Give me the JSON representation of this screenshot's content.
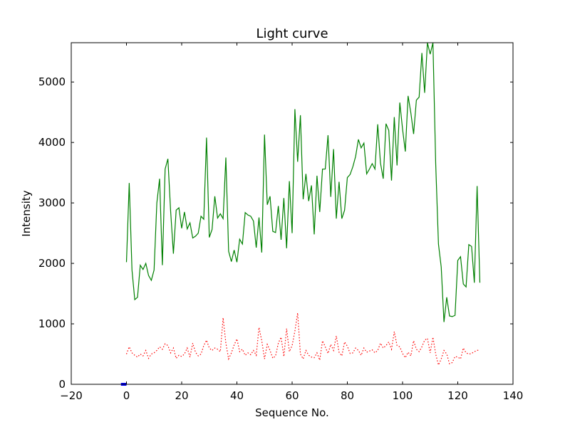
{
  "chart_data": {
    "type": "line",
    "title": "Light curve",
    "xlabel": "Sequence No.",
    "ylabel": "Intensity",
    "xlim": [
      -20,
      140
    ],
    "ylim": [
      0,
      5650
    ],
    "xticks": [
      -20,
      0,
      20,
      40,
      60,
      80,
      100,
      120,
      140
    ],
    "yticks": [
      0,
      1000,
      2000,
      3000,
      4000,
      5000
    ],
    "grid": false,
    "legend": "none",
    "series": [
      {
        "color": "#008000",
        "style": "solid",
        "x": [
          0,
          1,
          2,
          3,
          4,
          5,
          6,
          7,
          8,
          9,
          10,
          11,
          12,
          13,
          14,
          15,
          16,
          17,
          18,
          19,
          20,
          21,
          22,
          23,
          24,
          25,
          26,
          27,
          28,
          29,
          30,
          31,
          32,
          33,
          34,
          35,
          36,
          37,
          38,
          39,
          40,
          41,
          42,
          43,
          44,
          45,
          46,
          47,
          48,
          49,
          50,
          51,
          52,
          53,
          54,
          55,
          56,
          57,
          58,
          59,
          60,
          61,
          62,
          63,
          64,
          65,
          66,
          67,
          68,
          69,
          70,
          71,
          72,
          73,
          74,
          75,
          76,
          77,
          78,
          79,
          80,
          81,
          82,
          83,
          84,
          85,
          86,
          87,
          88,
          89,
          90,
          91,
          92,
          93,
          94,
          95,
          96,
          97,
          98,
          99,
          100,
          101,
          102,
          103,
          104,
          105,
          106,
          107,
          108,
          109,
          110,
          111,
          112,
          113,
          114,
          115,
          116,
          117,
          118,
          119,
          120,
          121,
          122,
          123,
          124,
          125,
          126,
          127,
          128
        ],
        "y": [
          2020,
          3330,
          1890,
          1400,
          1440,
          1970,
          1900,
          2000,
          1800,
          1720,
          1890,
          3000,
          3400,
          1970,
          3560,
          3730,
          2860,
          2160,
          2880,
          2920,
          2580,
          2850,
          2570,
          2670,
          2420,
          2450,
          2500,
          2780,
          2730,
          4080,
          2430,
          2560,
          3110,
          2750,
          2820,
          2740,
          3750,
          2200,
          2030,
          2220,
          2020,
          2400,
          2320,
          2840,
          2800,
          2780,
          2700,
          2260,
          2760,
          2180,
          4130,
          2970,
          3110,
          2530,
          2510,
          2950,
          2390,
          3080,
          2250,
          3360,
          2500,
          4550,
          3680,
          4450,
          3060,
          3480,
          3030,
          3290,
          2480,
          3450,
          2850,
          3560,
          3560,
          4120,
          3100,
          3890,
          2740,
          3350,
          2740,
          2880,
          3420,
          3470,
          3600,
          3770,
          4050,
          3910,
          3990,
          3480,
          3560,
          3650,
          3560,
          4300,
          3660,
          3400,
          4310,
          4200,
          3370,
          4420,
          3620,
          4660,
          4220,
          3850,
          4770,
          4490,
          4140,
          4700,
          4750,
          5480,
          4820,
          5650,
          5460,
          5650,
          3650,
          2320,
          1940,
          1030,
          1440,
          1130,
          1120,
          1140,
          2050,
          2110,
          1660,
          1610,
          2310,
          2280,
          1680,
          3280,
          1680
        ]
      },
      {
        "color": "#ff0000",
        "style": "dotted",
        "x": [
          0,
          1,
          2,
          3,
          4,
          5,
          6,
          7,
          8,
          9,
          10,
          11,
          12,
          13,
          14,
          15,
          16,
          17,
          18,
          19,
          20,
          21,
          22,
          23,
          24,
          25,
          26,
          27,
          28,
          29,
          30,
          31,
          32,
          33,
          34,
          35,
          36,
          37,
          38,
          39,
          40,
          41,
          42,
          43,
          44,
          45,
          46,
          47,
          48,
          49,
          50,
          51,
          52,
          53,
          54,
          55,
          56,
          57,
          58,
          59,
          60,
          61,
          62,
          63,
          64,
          65,
          66,
          67,
          68,
          69,
          70,
          71,
          72,
          73,
          74,
          75,
          76,
          77,
          78,
          79,
          80,
          81,
          82,
          83,
          84,
          85,
          86,
          87,
          88,
          89,
          90,
          91,
          92,
          93,
          94,
          95,
          96,
          97,
          98,
          99,
          100,
          101,
          102,
          103,
          104,
          105,
          106,
          107,
          108,
          109,
          110,
          111,
          112,
          113,
          114,
          115,
          116,
          117,
          118,
          119,
          120,
          121,
          122,
          123,
          124,
          125,
          126,
          127,
          128
        ],
        "y": [
          500,
          620,
          520,
          480,
          450,
          500,
          470,
          560,
          430,
          500,
          520,
          560,
          620,
          580,
          670,
          640,
          520,
          600,
          430,
          480,
          460,
          500,
          600,
          450,
          680,
          530,
          470,
          500,
          640,
          730,
          600,
          560,
          600,
          580,
          540,
          1100,
          680,
          420,
          520,
          650,
          750,
          540,
          580,
          480,
          520,
          490,
          560,
          480,
          940,
          720,
          420,
          660,
          560,
          430,
          470,
          680,
          780,
          460,
          920,
          540,
          640,
          880,
          1180,
          500,
          420,
          560,
          480,
          450,
          440,
          520,
          400,
          720,
          620,
          510,
          660,
          560,
          800,
          530,
          470,
          700,
          630,
          510,
          520,
          600,
          560,
          480,
          600,
          530,
          550,
          570,
          520,
          560,
          680,
          600,
          640,
          700,
          580,
          870,
          640,
          620,
          510,
          440,
          530,
          470,
          720,
          580,
          540,
          620,
          730,
          760,
          520,
          780,
          500,
          320,
          420,
          560,
          500,
          340,
          360,
          460,
          450,
          420,
          600,
          520,
          500,
          510,
          540,
          560,
          570
        ]
      },
      {
        "color": "#0000ff",
        "style": "solid",
        "x": [
          -2,
          -1.5,
          -1,
          -0.5,
          0
        ],
        "y": [
          0,
          0,
          0,
          0,
          0
        ]
      }
    ]
  }
}
